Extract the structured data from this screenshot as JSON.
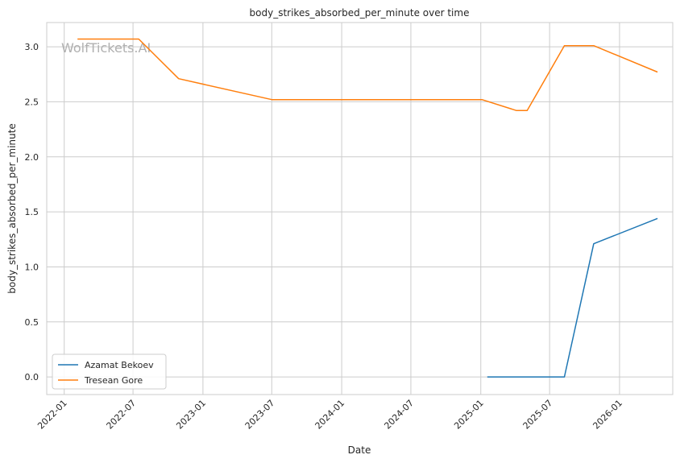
{
  "chart_data": {
    "type": "line",
    "title": "body_strikes_absorbed_per_minute over time",
    "xlabel": "Date",
    "ylabel": "body_strikes_absorbed_per_minute",
    "watermark": "WolfTickets.AI",
    "xlim": [
      "2021-11-16",
      "2026-05-21"
    ],
    "ylim": [
      -0.16,
      3.22
    ],
    "x_ticks": [
      "2022-01",
      "2022-07",
      "2023-01",
      "2023-07",
      "2024-01",
      "2024-07",
      "2025-01",
      "2025-07",
      "2026-01"
    ],
    "y_ticks": [
      "0.0",
      "0.5",
      "1.0",
      "1.5",
      "2.0",
      "2.5",
      "3.0"
    ],
    "grid": true,
    "legend_position": "lower-left",
    "series": [
      {
        "name": "Azamat Bekoev",
        "color": "#1f77b4",
        "points": [
          {
            "x": "2025-01-18",
            "y": 0.0
          },
          {
            "x": "2025-08-09",
            "y": 0.0
          },
          {
            "x": "2025-10-25",
            "y": 1.21
          },
          {
            "x": "2026-04-11",
            "y": 1.44
          }
        ]
      },
      {
        "name": "Tresean Gore",
        "color": "#ff7f0e",
        "points": [
          {
            "x": "2022-02-05",
            "y": 3.07
          },
          {
            "x": "2022-07-16",
            "y": 3.07
          },
          {
            "x": "2022-10-29",
            "y": 2.71
          },
          {
            "x": "2023-07-01",
            "y": 2.52
          },
          {
            "x": "2025-01-04",
            "y": 2.52
          },
          {
            "x": "2025-04-05",
            "y": 2.42
          },
          {
            "x": "2025-05-03",
            "y": 2.42
          },
          {
            "x": "2025-08-09",
            "y": 3.01
          },
          {
            "x": "2025-10-25",
            "y": 3.01
          },
          {
            "x": "2026-04-11",
            "y": 2.77
          }
        ]
      }
    ]
  }
}
